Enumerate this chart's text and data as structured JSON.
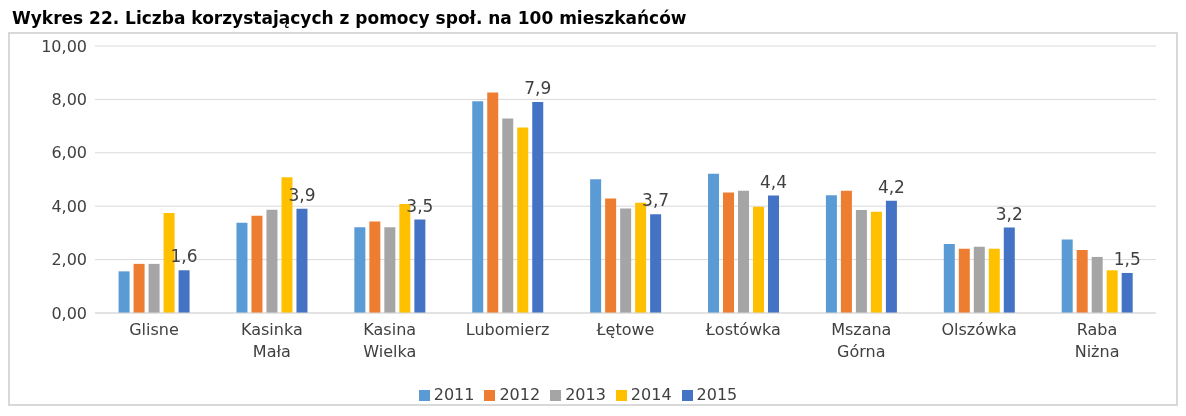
{
  "chart_data": {
    "type": "bar",
    "title": "Wykres 22. Liczba korzystających z pomocy społ. na 100 mieszkańców",
    "categories": [
      "Glisne",
      "Kasinka Mała",
      "Kasina Wielka",
      "Lubomierz",
      "Łętowe",
      "Łostówka",
      "Mszana Górna",
      "Olszówka",
      "Raba Niżna"
    ],
    "series": [
      {
        "name": "2011",
        "color": "#5b9bd5",
        "values": [
          1.56,
          3.38,
          3.21,
          7.93,
          5.01,
          5.22,
          4.41,
          2.58,
          2.75
        ]
      },
      {
        "name": "2012",
        "color": "#ed7d31",
        "values": [
          1.84,
          3.64,
          3.43,
          8.26,
          4.29,
          4.51,
          4.58,
          2.41,
          2.36
        ]
      },
      {
        "name": "2013",
        "color": "#a5a5a5",
        "values": [
          1.84,
          3.87,
          3.21,
          7.28,
          3.91,
          4.58,
          3.86,
          2.48,
          2.1
        ]
      },
      {
        "name": "2014",
        "color": "#ffc000",
        "values": [
          3.75,
          5.08,
          4.08,
          6.95,
          4.13,
          3.98,
          3.79,
          2.41,
          1.6
        ]
      },
      {
        "name": "2015",
        "color": "#4472c4",
        "values": [
          1.6,
          3.9,
          3.5,
          7.9,
          3.7,
          4.4,
          4.2,
          3.2,
          1.5
        ],
        "value_labels": [
          "1,6",
          "3,9",
          "3,5",
          "7,9",
          "3,7",
          "4,4",
          "4,2",
          "3,2",
          "1,5"
        ]
      }
    ],
    "ylim": [
      0,
      10
    ],
    "yticks": [
      {
        "value": 0,
        "label": "0,00"
      },
      {
        "value": 2,
        "label": "2,00"
      },
      {
        "value": 4,
        "label": "4,00"
      },
      {
        "value": 6,
        "label": "6,00"
      },
      {
        "value": 8,
        "label": "8,00"
      },
      {
        "value": 10,
        "label": "10,00"
      }
    ],
    "grid": "y",
    "legend": "bottom"
  }
}
